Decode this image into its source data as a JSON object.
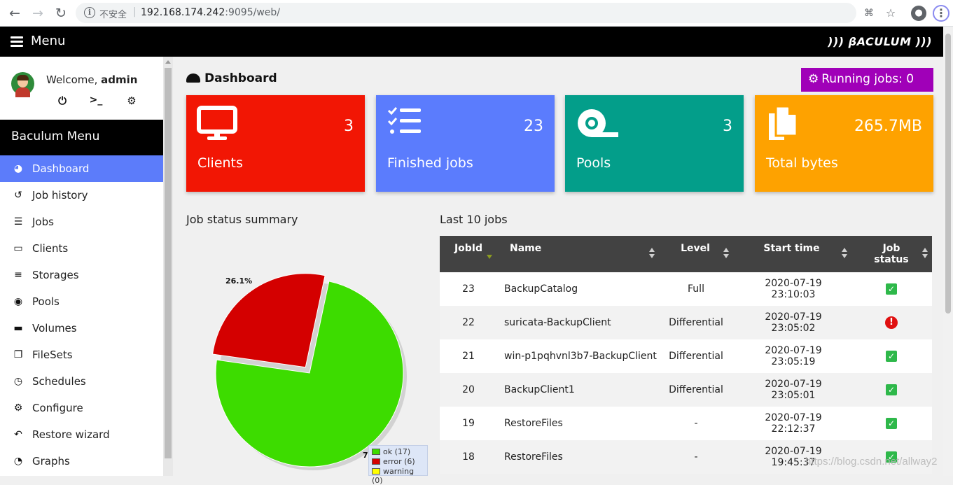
{
  "browser": {
    "security_label": "不安全",
    "url_host": "192.168.174.242",
    "url_rest": ":9095/web/"
  },
  "topbar": {
    "menu_label": "Menu",
    "logo": "))) βACULUM )))"
  },
  "user": {
    "welcome_prefix": "Welcome, ",
    "username": "admin"
  },
  "sidebar": {
    "header": "Baculum Menu",
    "items": [
      {
        "label": "Dashboard",
        "icon": "dashboard-icon",
        "glyph": "◕"
      },
      {
        "label": "Job history",
        "icon": "history-icon",
        "glyph": "↺"
      },
      {
        "label": "Jobs",
        "icon": "tasks-icon",
        "glyph": "☰"
      },
      {
        "label": "Clients",
        "icon": "desktop-icon",
        "glyph": "▭"
      },
      {
        "label": "Storages",
        "icon": "database-icon",
        "glyph": "≡"
      },
      {
        "label": "Pools",
        "icon": "tape-icon",
        "glyph": "◉"
      },
      {
        "label": "Volumes",
        "icon": "hdd-icon",
        "glyph": "▬"
      },
      {
        "label": "FileSets",
        "icon": "copy-icon",
        "glyph": "❐"
      },
      {
        "label": "Schedules",
        "icon": "clock-icon",
        "glyph": "◷"
      },
      {
        "label": "Configure",
        "icon": "cog-icon",
        "glyph": "⚙"
      },
      {
        "label": "Restore wizard",
        "icon": "reply-icon",
        "glyph": "↶"
      },
      {
        "label": "Graphs",
        "icon": "chart-pie-icon",
        "glyph": "◔"
      }
    ]
  },
  "dashboard": {
    "title": "Dashboard",
    "running_jobs": "Running jobs: 0",
    "tiles": [
      {
        "name": "Clients",
        "value": "3",
        "color": "#f21604",
        "icon": "desktop-icon"
      },
      {
        "name": "Finished jobs",
        "value": "23",
        "color": "#5b7cfd",
        "icon": "tasks-icon"
      },
      {
        "name": "Pools",
        "value": "3",
        "color": "#039e8a",
        "icon": "tape-icon"
      },
      {
        "name": "Total bytes",
        "value": "265.7MB",
        "color": "#fea200",
        "icon": "copy-icon"
      }
    ]
  },
  "job_status": {
    "title": "Job status summary",
    "label_error": "26.1%",
    "label_ok": "7",
    "legend": [
      {
        "label": "ok (17)",
        "color": "#3ddc00"
      },
      {
        "label": "error (6)",
        "color": "#d40000"
      },
      {
        "label": "warning (0)",
        "color": "#ffff00"
      }
    ]
  },
  "chart_data": {
    "type": "pie",
    "title": "",
    "slices": [
      {
        "name": "ok",
        "value": 17,
        "color": "#3ddc00"
      },
      {
        "name": "error",
        "value": 6,
        "color": "#d40000"
      },
      {
        "name": "warning",
        "value": 0,
        "color": "#ffff00"
      }
    ]
  },
  "last_jobs": {
    "title": "Last 10 jobs",
    "columns": [
      "JobId",
      "Name",
      "Level",
      "Start time",
      "Job status"
    ],
    "rows": [
      {
        "jobid": "23",
        "name": "BackupCatalog",
        "level": "Full",
        "start_date": "2020-07-19",
        "start_time": "23:10:03",
        "status": "ok"
      },
      {
        "jobid": "22",
        "name": "suricata-BackupClient",
        "level": "Differential",
        "start_date": "2020-07-19",
        "start_time": "23:05:02",
        "status": "error"
      },
      {
        "jobid": "21",
        "name": "win-p1pqhvnl3b7-BackupClient",
        "level": "Differential",
        "start_date": "2020-07-19",
        "start_time": "23:05:19",
        "status": "ok"
      },
      {
        "jobid": "20",
        "name": "BackupClient1",
        "level": "Differential",
        "start_date": "2020-07-19",
        "start_time": "23:05:01",
        "status": "ok"
      },
      {
        "jobid": "19",
        "name": "RestoreFiles",
        "level": "-",
        "start_date": "2020-07-19",
        "start_time": "22:12:37",
        "status": "ok"
      },
      {
        "jobid": "18",
        "name": "RestoreFiles",
        "level": "-",
        "start_date": "2020-07-19",
        "start_time": "19:45:37",
        "status": "ok"
      }
    ]
  },
  "watermark": "https://blog.csdn.net/allway2"
}
